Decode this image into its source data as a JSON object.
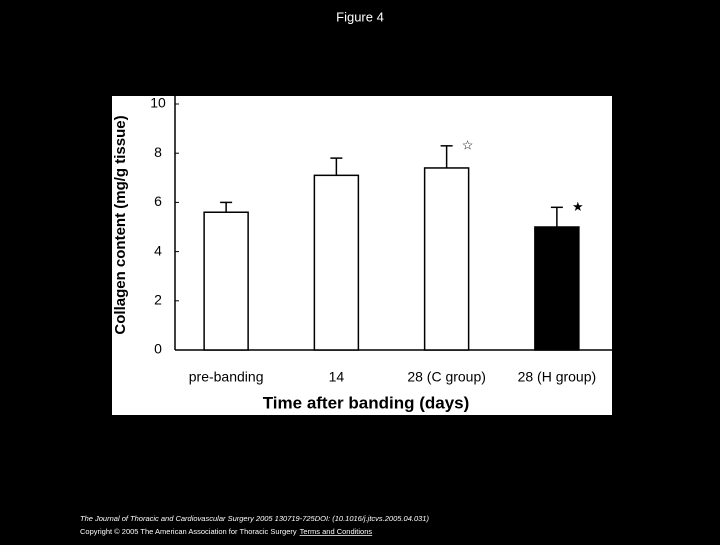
{
  "header": {
    "title": "Figure 4"
  },
  "chart_data": {
    "type": "bar",
    "ylabel": "Collagen content (mg/g tissue)",
    "xlabel": "Time after banding (days)",
    "categories": [
      "pre-banding",
      "14",
      "28 (C group)",
      "28 (H group)"
    ],
    "values": [
      5.6,
      7.1,
      7.4,
      5.0
    ],
    "errors": [
      0.4,
      0.7,
      0.9,
      0.8
    ],
    "colors": [
      "#ffffff",
      "#ffffff",
      "#ffffff",
      "#000000"
    ],
    "markers": [
      null,
      null,
      "☆",
      "★"
    ],
    "ylim": [
      0,
      10
    ],
    "yticks": [
      0,
      2,
      4,
      6,
      8,
      10
    ]
  },
  "footer": {
    "citation": "The Journal of Thoracic and Cardiovascular Surgery 2005 130719-725DOI: (10.1016/j.jtcvs.2005.04.031)",
    "copyright": "Copyright © 2005 The American Association for Thoracic Surgery",
    "link": "Terms and Conditions"
  }
}
